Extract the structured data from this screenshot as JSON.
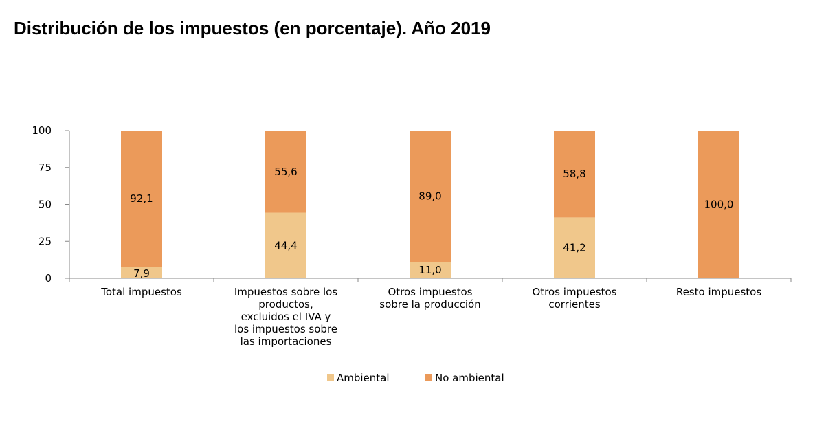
{
  "chart_data": {
    "type": "bar",
    "stacked": true,
    "title": "Distribución de los impuestos (en porcentaje). Año 2019",
    "xlabel": "",
    "ylabel": "",
    "ylim": [
      0,
      100
    ],
    "yticks": [
      0,
      25,
      50,
      75,
      100
    ],
    "grid": false,
    "legend_position": "bottom",
    "categories": [
      [
        "Total impuestos"
      ],
      [
        "Impuestos sobre los",
        "productos,",
        "excluidos el IVA y",
        "los impuestos sobre",
        "las importaciones"
      ],
      [
        "Otros impuestos",
        "sobre la producción"
      ],
      [
        "Otros impuestos",
        "corrientes"
      ],
      [
        "Resto impuestos"
      ]
    ],
    "series": [
      {
        "name": "Ambiental",
        "color": "#F0C78B",
        "values": [
          7.9,
          44.4,
          11.0,
          41.2,
          0.0
        ],
        "labels": [
          "7,9",
          "44,4",
          "11,0",
          "41,2",
          ""
        ]
      },
      {
        "name": "No ambiental",
        "color": "#EB9A5A",
        "values": [
          92.1,
          55.6,
          89.0,
          58.8,
          100.0
        ],
        "labels": [
          "92,1",
          "55,6",
          "89,0",
          "58,8",
          "100,0"
        ]
      }
    ]
  }
}
